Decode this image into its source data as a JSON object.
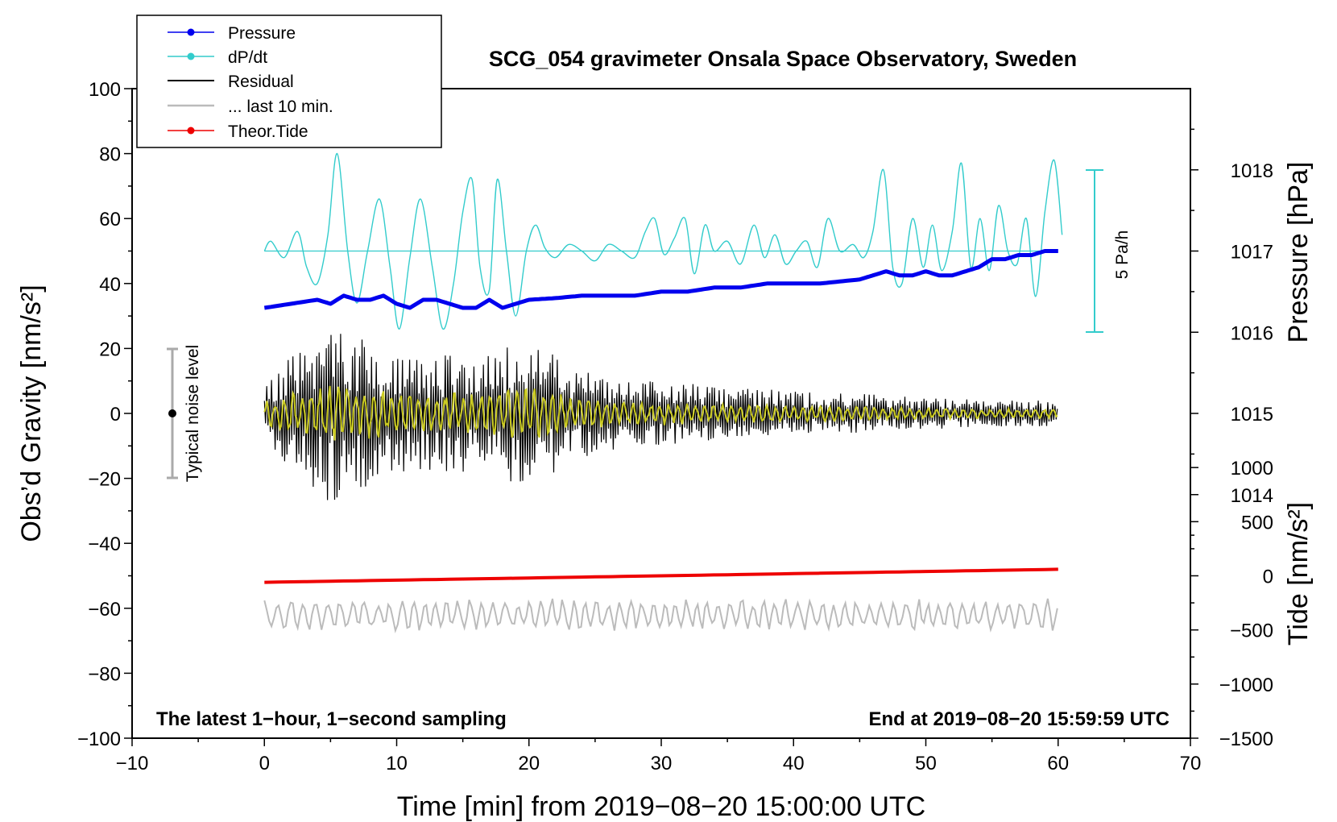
{
  "chart_data": {
    "type": "line",
    "title": "SCG_054 gravimeter Onsala Space Observatory, Sweden",
    "xlabel": "Time [min] from 2019−08−20 15:00:00 UTC",
    "ylabel_left": "Obs’d Gravity [nm/s²]",
    "ylabel_right_top": "Pressure [hPa]",
    "ylabel_right_bottom": "Tide [nm/s²]",
    "xlim": [
      -10,
      70
    ],
    "ylim": [
      -100,
      100
    ],
    "pressure_range": [
      1011,
      1019
    ],
    "tide_range": [
      -1500,
      4500
    ],
    "x_ticks": [
      "−10",
      "0",
      "10",
      "20",
      "30",
      "40",
      "50",
      "60",
      "70"
    ],
    "y_ticks": [
      "100",
      "80",
      "60",
      "40",
      "20",
      "0",
      "−20",
      "−40",
      "−60",
      "−80",
      "−100"
    ],
    "pressure_ticks": [
      "1018",
      "1017",
      "1016",
      "1015",
      "1014"
    ],
    "tide_ticks": [
      "1000",
      "500",
      "0",
      "−500",
      "−1000",
      "−1500"
    ],
    "note_left": "The latest 1−hour, 1−second sampling",
    "note_right": "End at 2019−08−20 15:59:59 UTC",
    "noise_label": "Typical noise level",
    "noise_range": [
      -20,
      20
    ],
    "scale_label": "5 Pa/h",
    "legend": [
      {
        "name": "Pressure",
        "color": "#0000ee",
        "marker": true
      },
      {
        "name": "dP/dt",
        "color": "#33cccc",
        "marker": true
      },
      {
        "name": "Residual",
        "color": "#000000",
        "marker": false
      },
      {
        "name": "... last 10 min.",
        "color": "#bbbbbb",
        "marker": false
      },
      {
        "name": "Theor.Tide",
        "color": "#ee0000",
        "marker": true
      }
    ],
    "series": [
      {
        "name": "Pressure",
        "unit": "hPa",
        "color": "#0000ee",
        "x": [
          0,
          2,
          4,
          5,
          6,
          7,
          8,
          9,
          10,
          11,
          12,
          13,
          14,
          15,
          16,
          17,
          18,
          19,
          20,
          22,
          24,
          26,
          28,
          30,
          32,
          34,
          36,
          38,
          40,
          42,
          45,
          46,
          47,
          48,
          49,
          50,
          51,
          52,
          53,
          54,
          55,
          56,
          57,
          58,
          59,
          60
        ],
        "values": [
          1016.3,
          1016.35,
          1016.4,
          1016.35,
          1016.45,
          1016.4,
          1016.4,
          1016.45,
          1016.35,
          1016.3,
          1016.4,
          1016.4,
          1016.35,
          1016.3,
          1016.3,
          1016.4,
          1016.3,
          1016.35,
          1016.4,
          1016.42,
          1016.45,
          1016.45,
          1016.45,
          1016.5,
          1016.5,
          1016.55,
          1016.55,
          1016.6,
          1016.6,
          1016.6,
          1016.65,
          1016.7,
          1016.75,
          1016.7,
          1016.7,
          1016.75,
          1016.7,
          1016.7,
          1016.75,
          1016.8,
          1016.9,
          1016.9,
          1016.95,
          1016.95,
          1017.0,
          1017.0
        ]
      },
      {
        "name": "dP/dt",
        "unit": "nm/s2 (plot units)",
        "color": "#33cccc",
        "x": [
          0,
          0.5,
          1.5,
          2.5,
          3.2,
          4.0,
          4.8,
          5.5,
          6.3,
          7.0,
          7.8,
          8.7,
          9.5,
          10.2,
          11.0,
          11.8,
          12.7,
          13.5,
          14.3,
          15.0,
          15.7,
          16.3,
          17.0,
          17.6,
          18.3,
          19.0,
          19.8,
          20.5,
          21.2,
          22.0,
          23.0,
          24.0,
          25.0,
          26.0,
          27.0,
          28.0,
          28.8,
          29.5,
          30.2,
          31.0,
          31.8,
          32.5,
          33.3,
          34.0,
          35.0,
          36.0,
          37.0,
          37.8,
          38.6,
          39.4,
          40.2,
          41.0,
          41.8,
          42.6,
          43.5,
          44.5,
          45.3,
          46.0,
          46.8,
          47.5,
          48.2,
          49.0,
          49.8,
          50.5,
          51.2,
          52.0,
          52.7,
          53.4,
          54.1,
          54.8,
          55.5,
          56.2,
          56.9,
          57.6,
          58.3,
          59.0,
          59.7,
          60.3
        ],
        "values": [
          50,
          53,
          48,
          56,
          45,
          40,
          55,
          80,
          50,
          34,
          50,
          66,
          45,
          26,
          48,
          66,
          45,
          26,
          40,
          62,
          72,
          45,
          38,
          72,
          50,
          30,
          50,
          58,
          51,
          48,
          52,
          50,
          47,
          52,
          50,
          48,
          56,
          60,
          49,
          54,
          60,
          43,
          58,
          50,
          53,
          46,
          58,
          48,
          55,
          46,
          50,
          53,
          45,
          60,
          50,
          52,
          48,
          56,
          75,
          45,
          40,
          60,
          45,
          58,
          44,
          56,
          77,
          45,
          60,
          44,
          64,
          50,
          46,
          60,
          36,
          62,
          78,
          55
        ]
      },
      {
        "name": "Residual",
        "unit": "nm/s2",
        "color": "#000000",
        "x": [
          0,
          5,
          10,
          15,
          20,
          25,
          30,
          35,
          40,
          45,
          50,
          55,
          60
        ],
        "envelope": [
          10,
          28,
          18,
          18,
          22,
          12,
          10,
          8,
          7,
          6,
          5,
          4,
          4
        ]
      },
      {
        "name": "... last 10 min.",
        "unit": "nm/s2",
        "color": "#bbbbbb",
        "x": [
          0,
          60
        ],
        "values": [
          -62,
          -62
        ]
      },
      {
        "name": "Theor.Tide",
        "unit": "nm/s2",
        "color": "#ee0000",
        "x": [
          0,
          60
        ],
        "values": [
          -52,
          -48
        ]
      }
    ]
  }
}
